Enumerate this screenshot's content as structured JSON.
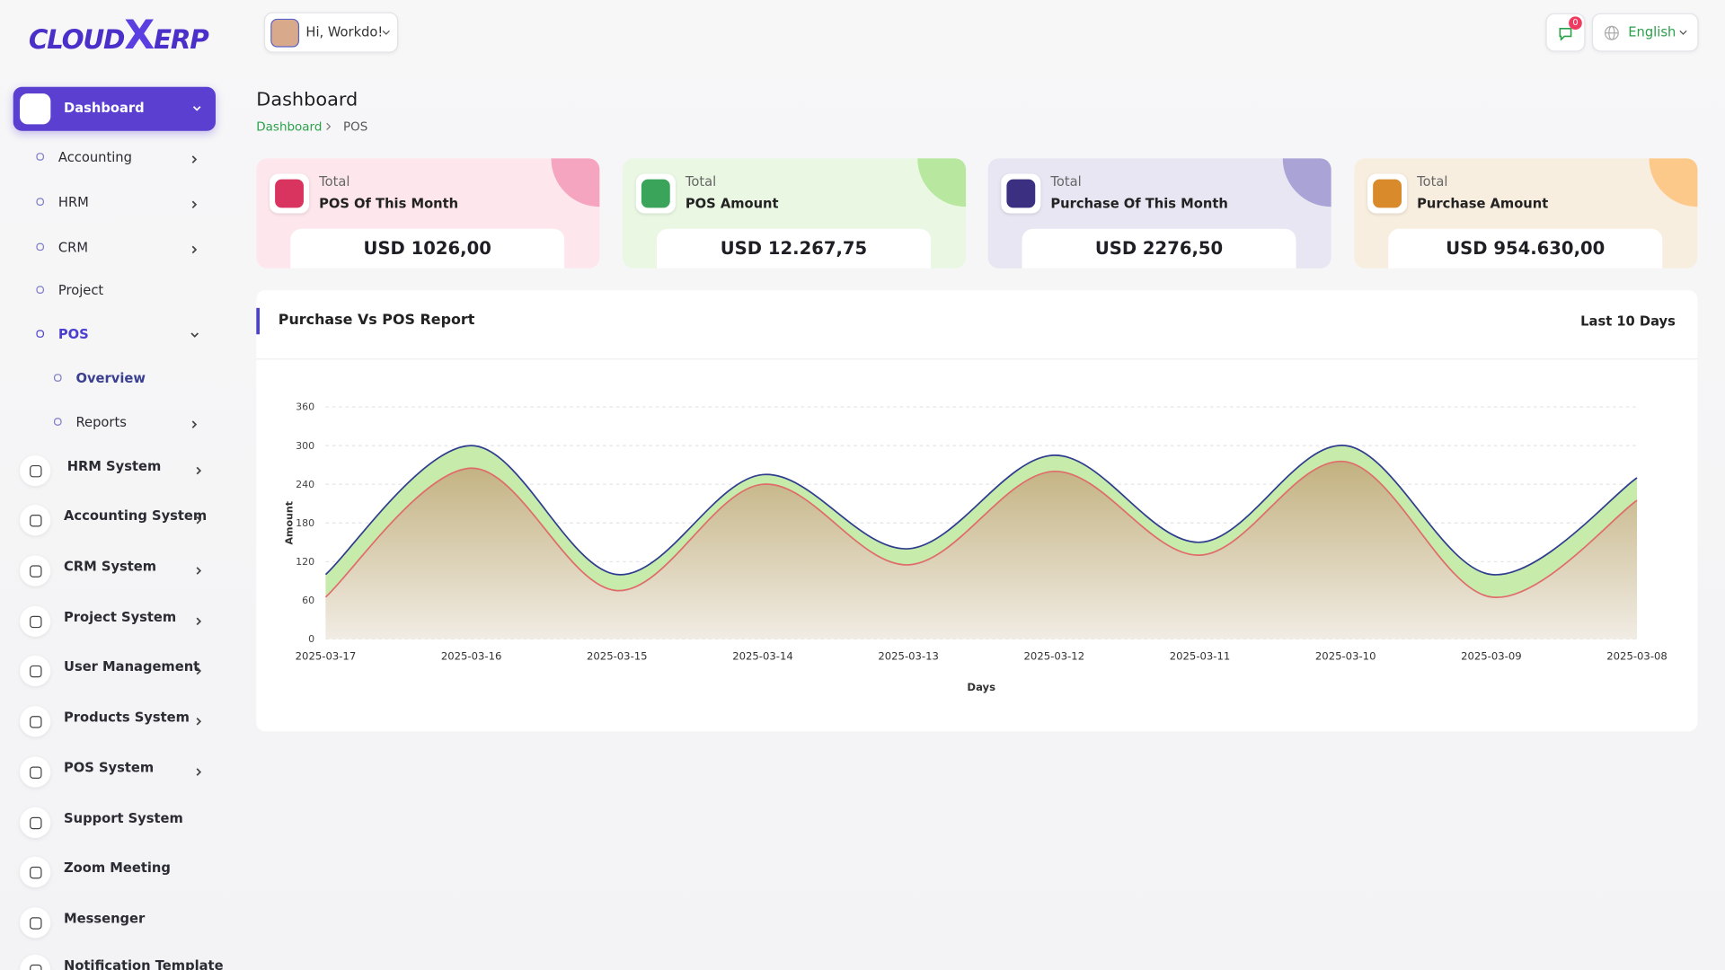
{
  "logo": {
    "left": "CLOUD",
    "mid": "X",
    "right": "ERP"
  },
  "sidebar": {
    "top": "Dashboard",
    "submenu": [
      "Accounting",
      "HRM",
      "CRM",
      "Project",
      "POS"
    ],
    "pos_submenu": [
      "Overview",
      "Reports"
    ],
    "systems": [
      "HRM System",
      "Accounting System",
      "CRM System",
      "Project System",
      "User Management",
      "Products System",
      "POS System",
      "Support System",
      "Zoom Meeting",
      "Messenger",
      "Notification Template"
    ]
  },
  "header": {
    "greeting": "Hi, Workdo!",
    "notifications": "0",
    "language": "English"
  },
  "page": {
    "title": "Dashboard",
    "breadcrumb": [
      "Dashboard",
      "POS"
    ]
  },
  "cards": [
    {
      "label": "Total",
      "title": "POS Of This Month",
      "value": "USD 1026,00"
    },
    {
      "label": "Total",
      "title": "POS Amount",
      "value": "USD 12.267,75"
    },
    {
      "label": "Total",
      "title": "Purchase Of This Month",
      "value": "USD 2276,50"
    },
    {
      "label": "Total",
      "title": "Purchase Amount",
      "value": "USD 954.630,00"
    }
  ],
  "report": {
    "title": "Purchase Vs POS Report",
    "period": "Last 10 Days"
  },
  "chart_data": {
    "type": "line",
    "x": [
      "2025-03-17",
      "2025-03-16",
      "2025-03-15",
      "2025-03-14",
      "2025-03-13",
      "2025-03-12",
      "2025-03-11",
      "2025-03-10",
      "2025-03-09",
      "2025-03-08"
    ],
    "series": [
      {
        "color": "#2f3d8f",
        "fill": "#c6ebab",
        "values": [
          100,
          300,
          100,
          255,
          140,
          285,
          150,
          300,
          100,
          250
        ]
      },
      {
        "color": "#e06b6b",
        "fill": "#c2b17f",
        "values": [
          65,
          265,
          75,
          240,
          115,
          260,
          130,
          275,
          65,
          215
        ]
      }
    ],
    "ylim": [
      0,
      360
    ],
    "yticks": [
      0,
      60,
      120,
      180,
      240,
      300,
      360
    ],
    "xlabel": "Days",
    "ylabel": "Amount",
    "grid": true
  }
}
